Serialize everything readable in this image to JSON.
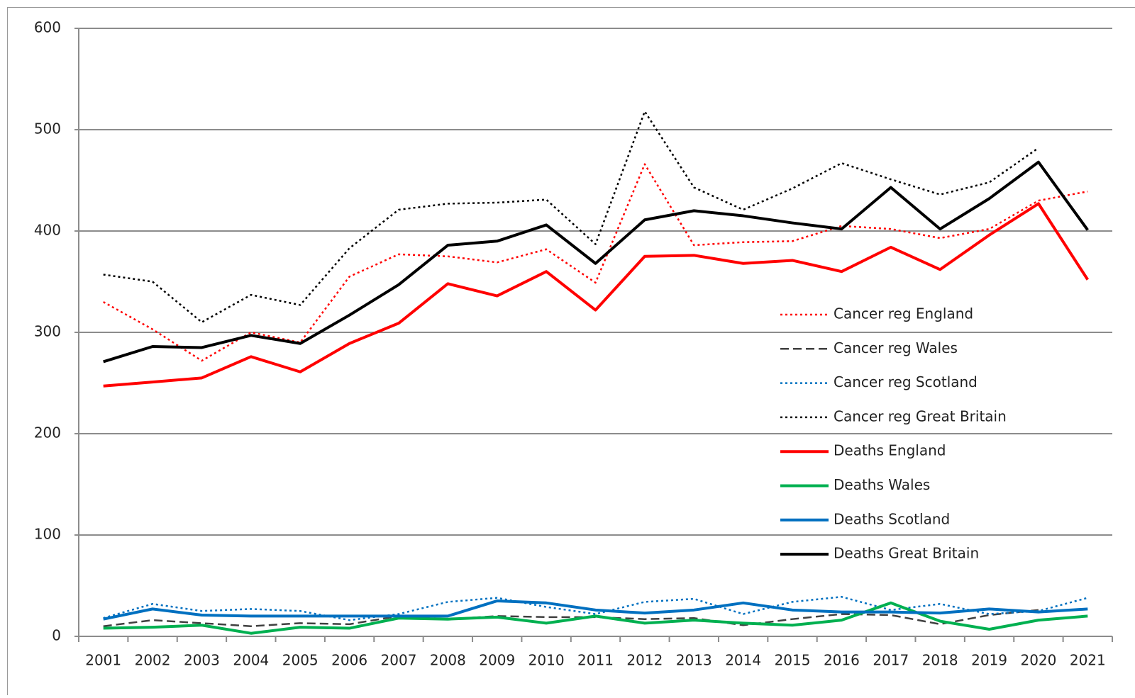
{
  "chart_data": {
    "type": "line",
    "categories": [
      "2001",
      "2002",
      "2003",
      "2004",
      "2005",
      "2006",
      "2007",
      "2008",
      "2009",
      "2010",
      "2011",
      "2012",
      "2013",
      "2014",
      "2015",
      "2016",
      "2017",
      "2018",
      "2019",
      "2020",
      "2021"
    ],
    "ylim": [
      0,
      600
    ],
    "yticks": [
      0,
      100,
      200,
      300,
      400,
      500,
      600
    ],
    "grid": true,
    "series": [
      {
        "name": "Cancer reg England",
        "color": "#ff0000",
        "style": "dotted",
        "values": [
          330,
          303,
          272,
          300,
          290,
          355,
          377,
          375,
          369,
          382,
          349,
          466,
          386,
          389,
          390,
          405,
          402,
          393,
          402,
          430,
          439
        ]
      },
      {
        "name": "Cancer reg Wales",
        "color": "#404040",
        "style": "dashed",
        "values": [
          10,
          16,
          13,
          10,
          13,
          12,
          20,
          17,
          20,
          19,
          19,
          17,
          18,
          11,
          17,
          22,
          21,
          12,
          21,
          26,
          null
        ]
      },
      {
        "name": "Cancer reg Scotland",
        "color": "#0070c0",
        "style": "dotted",
        "values": [
          18,
          32,
          25,
          27,
          25,
          16,
          22,
          34,
          38,
          29,
          22,
          34,
          37,
          22,
          34,
          39,
          26,
          32,
          22,
          25,
          38
        ]
      },
      {
        "name": "Cancer reg Great Britain",
        "color": "#000000",
        "style": "dotted",
        "values": [
          357,
          350,
          310,
          337,
          327,
          383,
          421,
          427,
          428,
          431,
          387,
          518,
          443,
          421,
          442,
          467,
          451,
          436,
          448,
          482,
          null
        ]
      },
      {
        "name": "Deaths England",
        "color": "#ff0000",
        "style": "solid",
        "values": [
          247,
          251,
          255,
          276,
          261,
          289,
          309,
          348,
          336,
          360,
          322,
          375,
          376,
          368,
          371,
          360,
          384,
          362,
          396,
          427,
          352
        ]
      },
      {
        "name": "Deaths Wales",
        "color": "#00b050",
        "style": "solid",
        "values": [
          8,
          9,
          11,
          3,
          9,
          8,
          18,
          17,
          19,
          13,
          20,
          13,
          16,
          13,
          11,
          16,
          33,
          15,
          7,
          16,
          20
        ]
      },
      {
        "name": "Deaths Scotland",
        "color": "#0070c0",
        "style": "solid",
        "values": [
          17,
          27,
          21,
          20,
          20,
          20,
          20,
          20,
          35,
          33,
          26,
          23,
          26,
          33,
          26,
          24,
          24,
          23,
          27,
          24,
          27
        ]
      },
      {
        "name": "Deaths Great Britain",
        "color": "#000000",
        "style": "solid",
        "values": [
          271,
          286,
          285,
          297,
          289,
          317,
          347,
          386,
          390,
          406,
          368,
          411,
          420,
          415,
          408,
          402,
          443,
          402,
          432,
          468,
          401
        ]
      }
    ]
  }
}
